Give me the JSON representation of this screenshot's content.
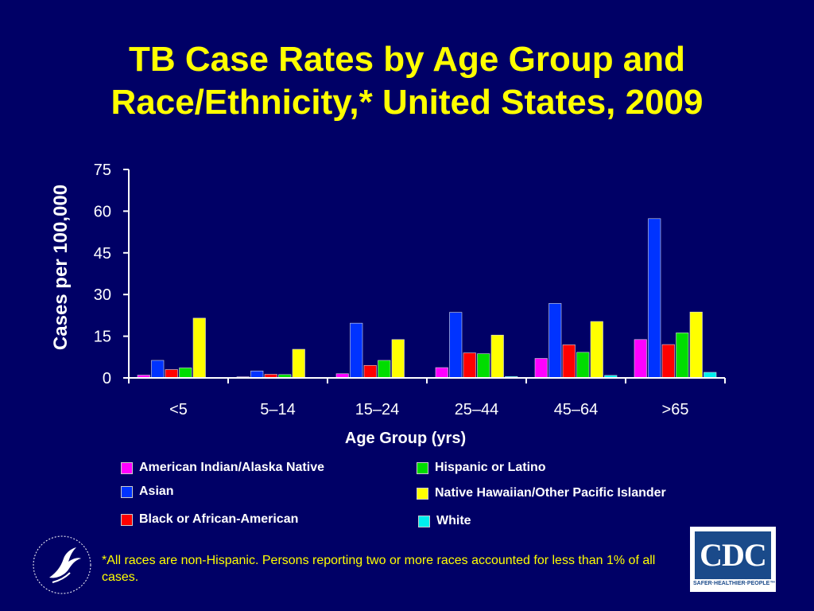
{
  "title_line1": "TB Case Rates by Age Group and",
  "title_line2": "Race/Ethnicity,* United States, 2009",
  "footnote": "*All races are non-Hispanic. Persons reporting two or more races accounted for less than 1% of all cases.",
  "logo": {
    "text": "CDC",
    "tagline": "SAFER·HEALTHIER·PEOPLE™"
  },
  "chart_data": {
    "type": "bar",
    "xlabel": "Age Group (yrs)",
    "ylabel": "Cases per 100,000",
    "ylim": [
      0,
      75
    ],
    "yticks": [
      0,
      15,
      30,
      45,
      60,
      75
    ],
    "grid": false,
    "legend_position": "bottom",
    "categories": [
      "<5",
      "5–14",
      "15–24",
      "25–44",
      "45–64",
      ">65"
    ],
    "series": [
      {
        "name": "American Indian/Alaska Native",
        "color": "#ff00ff",
        "values": [
          1.0,
          0.4,
          1.5,
          3.7,
          7.0,
          13.8
        ]
      },
      {
        "name": "Asian",
        "color": "#0033ff",
        "values": [
          6.3,
          2.5,
          19.7,
          23.6,
          26.8,
          57.3
        ]
      },
      {
        "name": "Black or African-American",
        "color": "#ff0000",
        "values": [
          3.0,
          1.3,
          4.5,
          9.0,
          11.9,
          12.0
        ]
      },
      {
        "name": "Hispanic or Latino",
        "color": "#00dd00",
        "values": [
          3.6,
          1.2,
          6.3,
          8.7,
          9.2,
          16.2
        ]
      },
      {
        "name": "Native Hawaiian/Other Pacific Islander",
        "color": "#ffff00",
        "values": [
          21.5,
          10.3,
          13.8,
          15.4,
          20.3,
          23.7
        ]
      },
      {
        "name": "White",
        "color": "#00eeee",
        "values": [
          0.2,
          0.1,
          0.2,
          0.5,
          0.9,
          2.0
        ]
      }
    ]
  }
}
